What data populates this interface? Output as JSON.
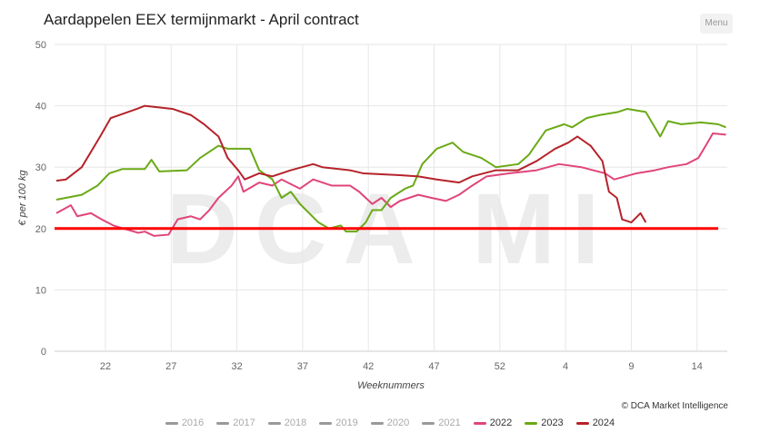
{
  "title": "Aardappelen EEX termijnmarkt - April contract",
  "menu_label": "Menu",
  "credit": "© DCA Market Intelligence",
  "watermark": "DCA MI",
  "chart_data": {
    "type": "line",
    "title": "Aardappelen EEX termijnmarkt - April contract",
    "xlabel": "Weeknummers",
    "ylabel": "€ per 100 kg",
    "ylim": [
      0,
      50
    ],
    "yticks": [
      0,
      10,
      20,
      30,
      40,
      50
    ],
    "xlim": [
      0.13,
      51.3
    ],
    "xticks": [
      {
        "x": 4,
        "label": "22"
      },
      {
        "x": 9,
        "label": "27"
      },
      {
        "x": 14,
        "label": "32"
      },
      {
        "x": 19,
        "label": "37"
      },
      {
        "x": 24,
        "label": "42"
      },
      {
        "x": 29,
        "label": "47"
      },
      {
        "x": 34,
        "label": "52"
      },
      {
        "x": 39,
        "label": "4"
      },
      {
        "x": 44,
        "label": "9"
      },
      {
        "x": 49,
        "label": "14"
      }
    ],
    "reference_line": {
      "y": 20,
      "color": "#ff0000"
    },
    "legend": [
      {
        "name": "2016",
        "color": "#999999",
        "visible": false
      },
      {
        "name": "2017",
        "color": "#999999",
        "visible": false
      },
      {
        "name": "2018",
        "color": "#999999",
        "visible": false
      },
      {
        "name": "2019",
        "color": "#999999",
        "visible": false
      },
      {
        "name": "2020",
        "color": "#999999",
        "visible": false
      },
      {
        "name": "2021",
        "color": "#999999",
        "visible": false
      },
      {
        "name": "2022",
        "color": "#e0457b",
        "visible": true
      },
      {
        "name": "2023",
        "color": "#6aaa16",
        "visible": true
      },
      {
        "name": "2024",
        "color": "#b5232a",
        "visible": true
      }
    ],
    "series": [
      {
        "name": "2022",
        "color": "#e0457b",
        "points": [
          [
            0.27,
            22.5
          ],
          [
            1.37,
            23.8
          ],
          [
            1.86,
            22
          ],
          [
            2.9,
            22.5
          ],
          [
            3.7,
            21.5
          ],
          [
            4.6,
            20.5
          ],
          [
            5.7,
            19.8
          ],
          [
            6.5,
            19.3
          ],
          [
            7.0,
            19.5
          ],
          [
            7.7,
            18.8
          ],
          [
            8.8,
            19
          ],
          [
            9.5,
            21.5
          ],
          [
            10.5,
            22
          ],
          [
            11.2,
            21.5
          ],
          [
            11.9,
            23
          ],
          [
            12.6,
            25
          ],
          [
            13.6,
            27
          ],
          [
            14.1,
            28.5
          ],
          [
            14.5,
            26
          ],
          [
            15.7,
            27.5
          ],
          [
            16.7,
            27
          ],
          [
            17.4,
            28
          ],
          [
            18.8,
            26.5
          ],
          [
            19.8,
            28
          ],
          [
            21.2,
            27
          ],
          [
            22.6,
            27
          ],
          [
            23.3,
            26
          ],
          [
            24.3,
            24
          ],
          [
            25.0,
            25
          ],
          [
            25.7,
            23.5
          ],
          [
            26.4,
            24.5
          ],
          [
            27.8,
            25.5
          ],
          [
            28.8,
            25
          ],
          [
            29.9,
            24.5
          ],
          [
            30.9,
            25.5
          ],
          [
            31.9,
            27
          ],
          [
            33.0,
            28.5
          ],
          [
            34.7,
            29
          ],
          [
            36.8,
            29.5
          ],
          [
            38.5,
            30.5
          ],
          [
            40.2,
            30
          ],
          [
            42.0,
            29
          ],
          [
            42.7,
            28
          ],
          [
            44.4,
            29
          ],
          [
            45.8,
            29.5
          ],
          [
            46.8,
            30
          ],
          [
            48.2,
            30.5
          ],
          [
            49.1,
            31.5
          ],
          [
            49.8,
            34
          ],
          [
            50.2,
            35.5
          ],
          [
            51.2,
            35.3
          ]
        ]
      },
      {
        "name": "2023",
        "color": "#6aaa16",
        "points": [
          [
            0.27,
            24.7
          ],
          [
            2.2,
            25.5
          ],
          [
            3.4,
            27
          ],
          [
            4.3,
            29
          ],
          [
            5.3,
            29.7
          ],
          [
            7.0,
            29.7
          ],
          [
            7.5,
            31.2
          ],
          [
            8.1,
            29.3
          ],
          [
            10.2,
            29.5
          ],
          [
            11.2,
            31.5
          ],
          [
            12.6,
            33.5
          ],
          [
            13.3,
            33
          ],
          [
            15.0,
            33
          ],
          [
            15.7,
            29.5
          ],
          [
            16.7,
            28
          ],
          [
            17.4,
            25
          ],
          [
            18.1,
            26
          ],
          [
            18.8,
            24
          ],
          [
            20.2,
            21
          ],
          [
            21.0,
            20
          ],
          [
            21.9,
            20.5
          ],
          [
            22.3,
            19.5
          ],
          [
            23.1,
            19.5
          ],
          [
            23.8,
            21
          ],
          [
            24.3,
            23
          ],
          [
            25.0,
            23
          ],
          [
            25.7,
            25
          ],
          [
            26.8,
            26.5
          ],
          [
            27.4,
            27
          ],
          [
            28.1,
            30.5
          ],
          [
            29.2,
            33
          ],
          [
            30.4,
            34
          ],
          [
            31.2,
            32.5
          ],
          [
            32.6,
            31.5
          ],
          [
            33.7,
            30
          ],
          [
            35.4,
            30.5
          ],
          [
            36.2,
            32
          ],
          [
            37.5,
            36
          ],
          [
            38.9,
            37
          ],
          [
            39.5,
            36.5
          ],
          [
            40.6,
            38
          ],
          [
            41.6,
            38.5
          ],
          [
            43.0,
            39
          ],
          [
            43.7,
            39.5
          ],
          [
            45.1,
            39
          ],
          [
            46.2,
            35
          ],
          [
            46.8,
            37.5
          ],
          [
            47.8,
            37
          ],
          [
            49.3,
            37.3
          ],
          [
            50.6,
            37
          ],
          [
            51.2,
            36.5
          ]
        ]
      },
      {
        "name": "2024",
        "color": "#b5232a",
        "points": [
          [
            0.27,
            27.8
          ],
          [
            1.0,
            28
          ],
          [
            2.2,
            30
          ],
          [
            3.6,
            35
          ],
          [
            4.4,
            38
          ],
          [
            6.4,
            39.5
          ],
          [
            7.0,
            40
          ],
          [
            9.1,
            39.5
          ],
          [
            10.5,
            38.5
          ],
          [
            11.5,
            37
          ],
          [
            12.6,
            35
          ],
          [
            13.3,
            31.5
          ],
          [
            14.1,
            29.5
          ],
          [
            14.6,
            28
          ],
          [
            15.7,
            29
          ],
          [
            16.7,
            28.5
          ],
          [
            18.1,
            29.5
          ],
          [
            19.8,
            30.5
          ],
          [
            20.5,
            30
          ],
          [
            22.6,
            29.5
          ],
          [
            23.6,
            29
          ],
          [
            26.4,
            28.7
          ],
          [
            27.8,
            28.5
          ],
          [
            29.2,
            28
          ],
          [
            30.9,
            27.5
          ],
          [
            31.9,
            28.5
          ],
          [
            33.7,
            29.5
          ],
          [
            35.4,
            29.5
          ],
          [
            36.8,
            31
          ],
          [
            38.2,
            33
          ],
          [
            39.2,
            34
          ],
          [
            39.9,
            35
          ],
          [
            40.9,
            33.5
          ],
          [
            41.8,
            31
          ],
          [
            42.3,
            26
          ],
          [
            42.9,
            25
          ],
          [
            43.3,
            21.5
          ],
          [
            44.0,
            21
          ],
          [
            44.7,
            22.5
          ],
          [
            45.1,
            21
          ]
        ]
      }
    ]
  }
}
